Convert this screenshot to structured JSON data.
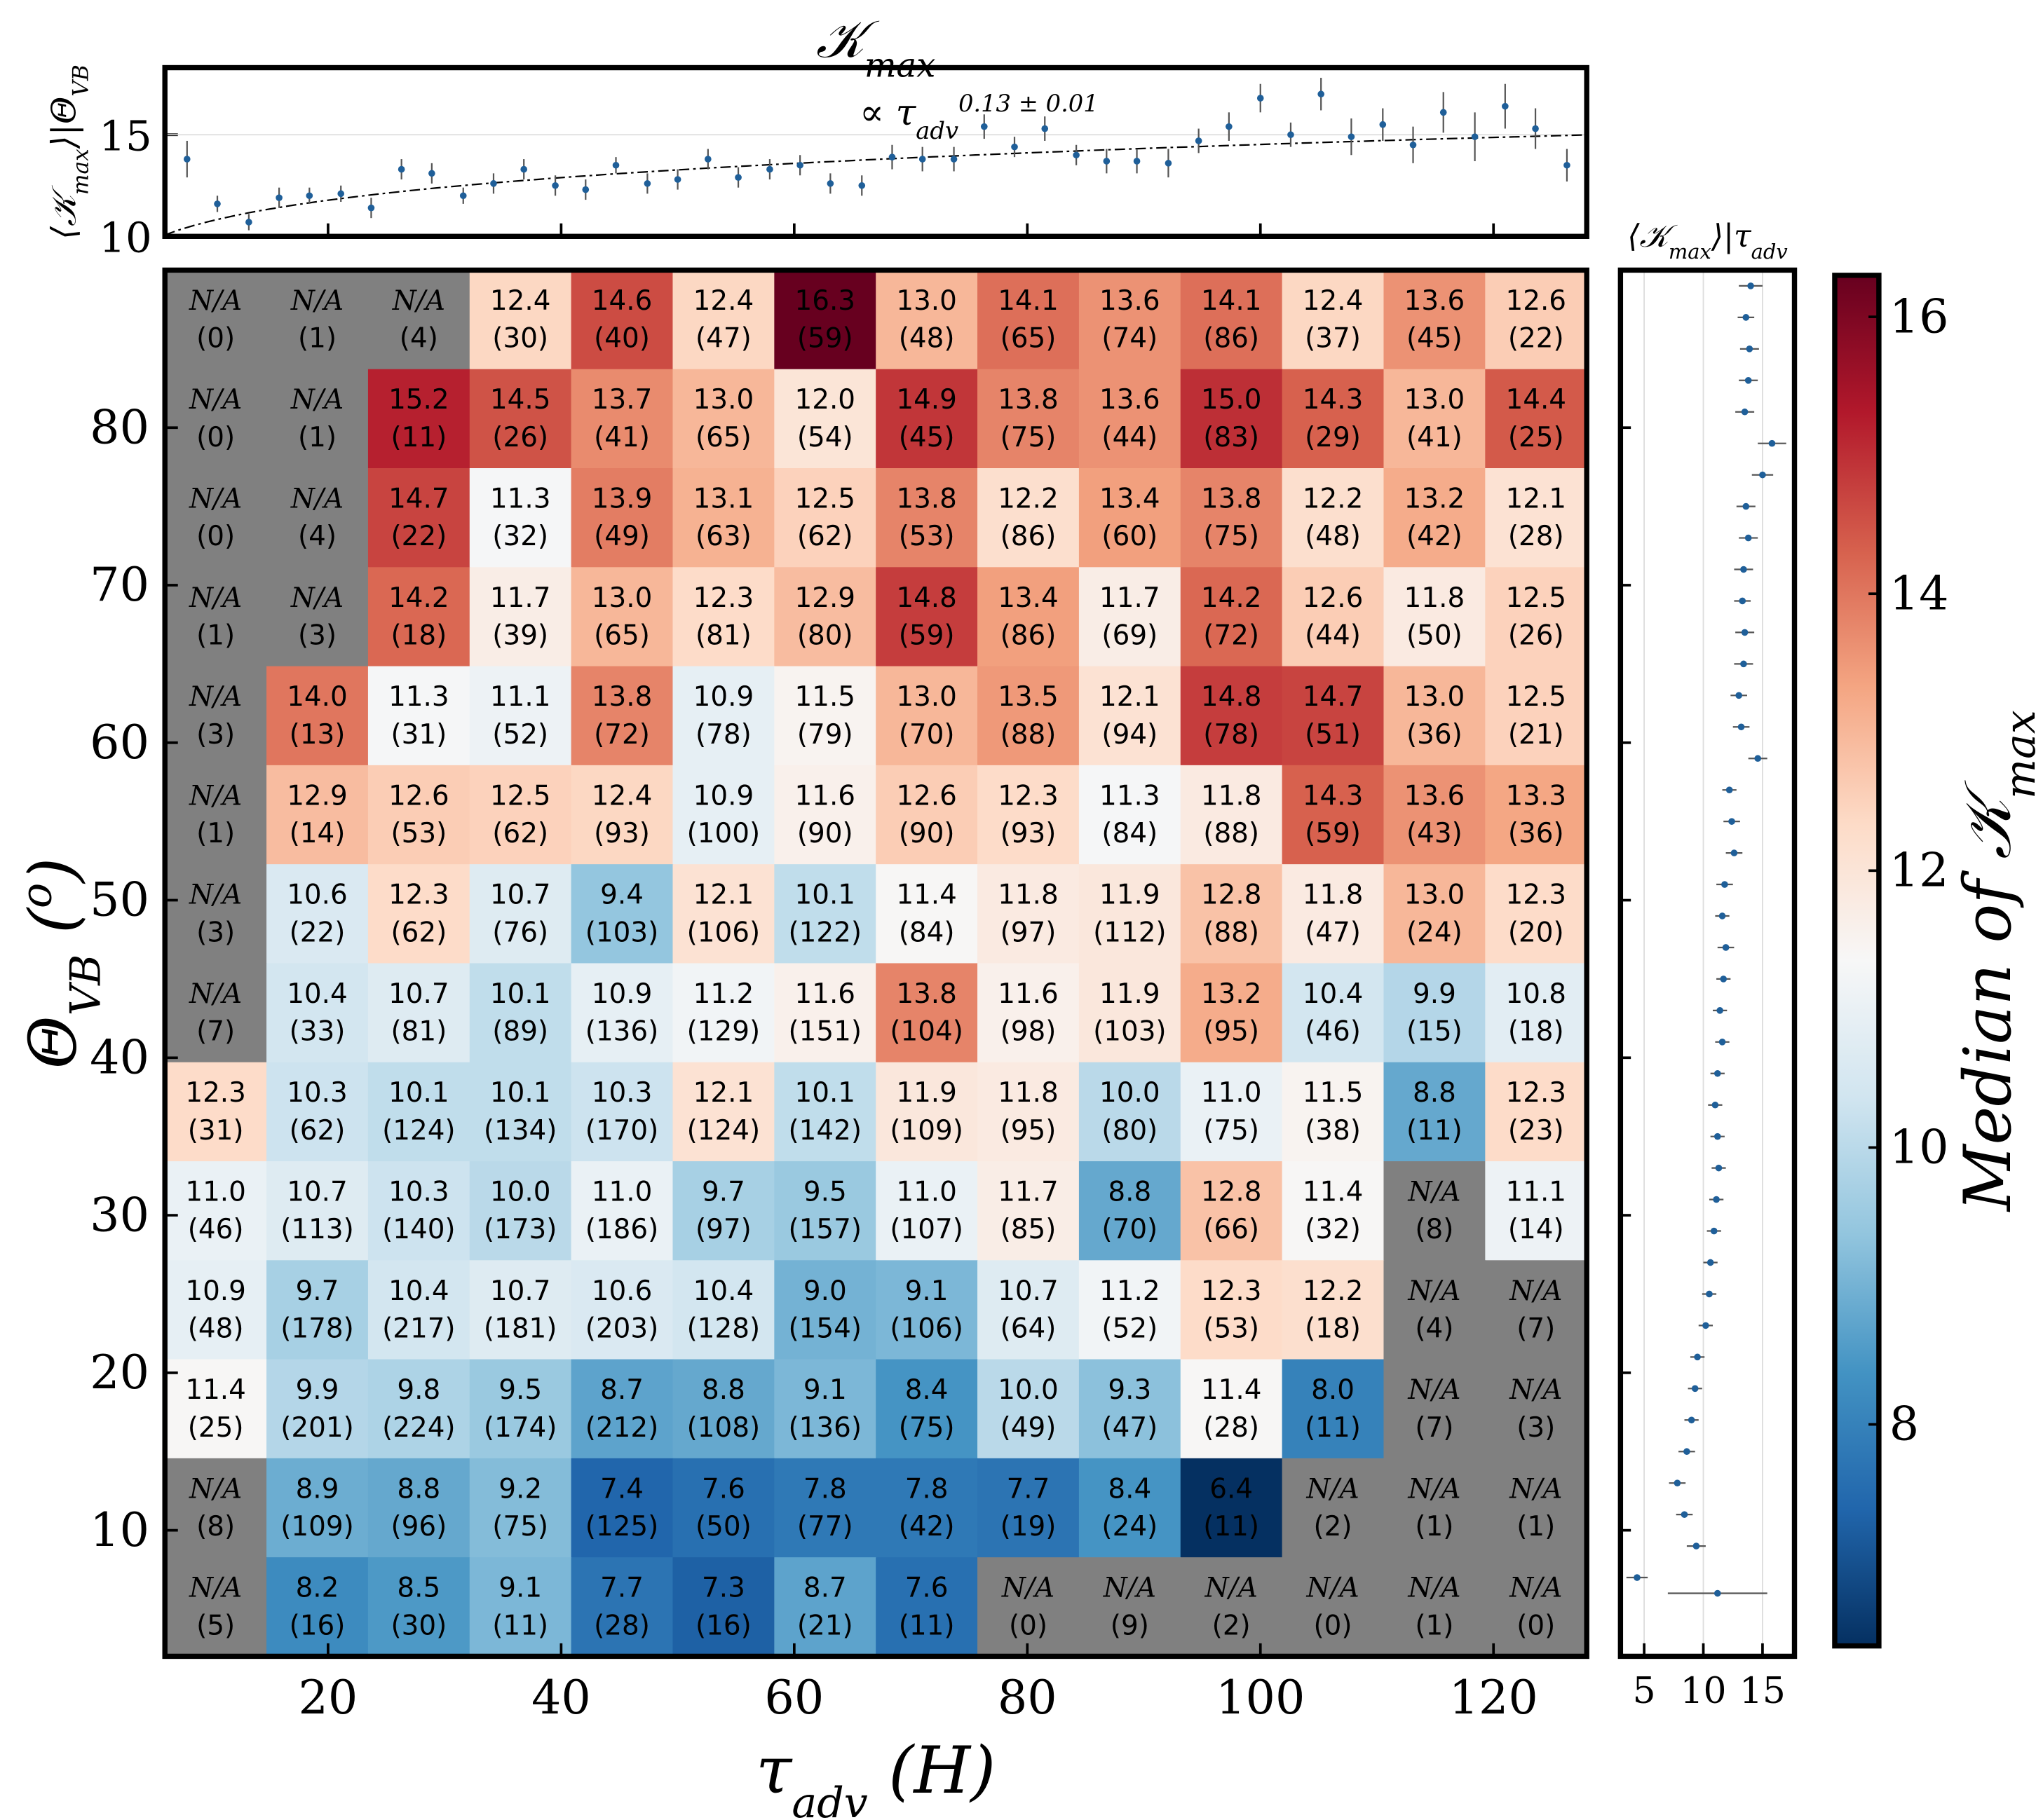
{
  "chart_data": {
    "type": "heatmap",
    "title": [
      {
        "t": "𝒦"
      },
      {
        "t": "max",
        "s": "sub"
      }
    ],
    "heatmap": {
      "xlim": [
        6,
        128
      ],
      "ylim": [
        2,
        90
      ],
      "xticks": [
        20,
        40,
        60,
        80,
        100,
        120
      ],
      "yticks": [
        10,
        20,
        30,
        40,
        50,
        60,
        70,
        80
      ],
      "xlabel": [
        {
          "t": "τ"
        },
        {
          "t": "adv",
          "s": "sub"
        },
        {
          "t": " (H)"
        }
      ],
      "ylabel": [
        {
          "t": "Θ"
        },
        {
          "t": "VB",
          "s": "sub"
        },
        {
          "t": " ("
        },
        {
          "t": "o",
          "s": "sup"
        },
        {
          "t": ")"
        }
      ],
      "na_label": "N/A",
      "na_color": "#808080",
      "clim": [
        6.4,
        16.3
      ],
      "colormap": [
        "#053061",
        "#2166ac",
        "#4393c3",
        "#92c5de",
        "#d1e5f0",
        "#f7f7f7",
        "#fddbc7",
        "#f4a582",
        "#d6604d",
        "#b2182b",
        "#67001f"
      ],
      "colorbar_ticks": [
        8,
        10,
        12,
        14,
        16
      ],
      "colorbar_label": [
        {
          "t": "Median of "
        },
        {
          "t": "𝒦"
        },
        {
          "t": "max",
          "s": "sub"
        }
      ],
      "values": [
        [
          null,
          null,
          null,
          12.4,
          14.6,
          12.4,
          16.3,
          13.0,
          14.1,
          13.6,
          14.1,
          12.4,
          13.6,
          12.6
        ],
        [
          null,
          null,
          15.2,
          14.5,
          13.7,
          13.0,
          12.0,
          14.9,
          13.8,
          13.6,
          15.0,
          14.3,
          13.0,
          14.4
        ],
        [
          null,
          null,
          14.7,
          11.3,
          13.9,
          13.1,
          12.5,
          13.8,
          12.2,
          13.4,
          13.8,
          12.2,
          13.2,
          12.1
        ],
        [
          null,
          null,
          14.2,
          11.7,
          13.0,
          12.3,
          12.9,
          14.8,
          13.4,
          11.7,
          14.2,
          12.6,
          11.8,
          12.5
        ],
        [
          null,
          14.0,
          11.3,
          11.1,
          13.8,
          10.9,
          11.5,
          13.0,
          13.5,
          12.1,
          14.8,
          14.7,
          13.0,
          12.5
        ],
        [
          null,
          12.9,
          12.6,
          12.5,
          12.4,
          10.9,
          11.6,
          12.6,
          12.3,
          11.3,
          11.8,
          14.3,
          13.6,
          13.3
        ],
        [
          null,
          10.6,
          12.3,
          10.7,
          9.4,
          12.1,
          10.1,
          11.4,
          11.8,
          11.9,
          12.8,
          11.8,
          13.0,
          12.3
        ],
        [
          null,
          10.4,
          10.7,
          10.1,
          10.9,
          11.2,
          11.6,
          13.8,
          11.6,
          11.9,
          13.2,
          10.4,
          9.9,
          10.8
        ],
        [
          12.3,
          10.3,
          10.1,
          10.1,
          10.3,
          12.1,
          10.1,
          11.9,
          11.8,
          10.0,
          11.0,
          11.5,
          8.8,
          12.3
        ],
        [
          11.0,
          10.7,
          10.3,
          10.0,
          11.0,
          9.7,
          9.5,
          11.0,
          11.7,
          8.8,
          12.8,
          11.4,
          null,
          11.1
        ],
        [
          10.9,
          9.7,
          10.4,
          10.7,
          10.6,
          10.4,
          9.0,
          9.1,
          10.7,
          11.2,
          12.3,
          12.2,
          null,
          null
        ],
        [
          11.4,
          9.9,
          9.8,
          9.5,
          8.7,
          8.8,
          9.1,
          8.4,
          10.0,
          9.3,
          11.4,
          8.0,
          null,
          null
        ],
        [
          null,
          8.9,
          8.8,
          9.2,
          7.4,
          7.6,
          7.8,
          7.8,
          7.7,
          8.4,
          6.4,
          null,
          null,
          null
        ],
        [
          null,
          8.2,
          8.5,
          9.1,
          7.7,
          7.3,
          8.7,
          7.6,
          null,
          null,
          null,
          null,
          null,
          null
        ]
      ],
      "value_labels": [
        [
          null,
          null,
          null,
          "12.4",
          "14.6",
          "12.4",
          "16.3",
          "13.0",
          "14.1",
          "13.6",
          "14.1",
          "12.4",
          "13.6",
          "12.6"
        ],
        [
          null,
          null,
          "15.2",
          "14.5",
          "13.7",
          "13.0",
          "12.0",
          "14.9",
          "13.8",
          "13.6",
          "15.0",
          "14.3",
          "13.0",
          "14.4"
        ],
        [
          null,
          null,
          "14.7",
          "11.3",
          "13.9",
          "13.1",
          "12.5",
          "13.8",
          "12.2",
          "13.4",
          "13.8",
          "12.2",
          "13.2",
          "12.1"
        ],
        [
          null,
          null,
          "14.2",
          "11.7",
          "13.0",
          "12.3",
          "12.9",
          "14.8",
          "13.4",
          "11.7",
          "14.2",
          "12.6",
          "11.8",
          "12.5"
        ],
        [
          null,
          "14.0",
          "11.3",
          "11.1",
          "13.8",
          "10.9",
          "11.5",
          "13.0",
          "13.5",
          "12.1",
          "14.8",
          "14.7",
          "13.0",
          "12.5"
        ],
        [
          null,
          "12.9",
          "12.6",
          "12.5",
          "12.4",
          "10.9",
          "11.6",
          "12.6",
          "12.3",
          "11.3",
          "11.8",
          "14.3",
          "13.6",
          "13.3"
        ],
        [
          null,
          "10.6",
          "12.3",
          "10.7",
          "9.4",
          "12.1",
          "10.1",
          "11.4",
          "11.8",
          "11.9",
          "12.8",
          "11.8",
          "13.0",
          "12.3"
        ],
        [
          null,
          "10.4",
          "10.7",
          "10.1",
          "10.9",
          "11.2",
          "11.6",
          "13.8",
          "11.6",
          "11.9",
          "13.2",
          "10.4",
          "9.9",
          "10.8"
        ],
        [
          "12.3",
          "10.3",
          "10.1",
          "10.1",
          "10.3",
          "12.1",
          "10.1",
          "11.9",
          "11.8",
          "10.0",
          "11.0",
          "11.5",
          "8.8",
          "12.3"
        ],
        [
          "11.0",
          "10.7",
          "10.3",
          "10.0",
          "11.0",
          "9.7",
          "9.5",
          "11.0",
          "11.7",
          "8.8",
          "12.8",
          "11.4",
          null,
          "11.1"
        ],
        [
          "10.9",
          "9.7",
          "10.4",
          "10.7",
          "10.6",
          "10.4",
          "9.0",
          "9.1",
          "10.7",
          "11.2",
          "12.3",
          "12.2",
          null,
          null
        ],
        [
          "11.4",
          "9.9",
          "9.8",
          "9.5",
          "8.7",
          "8.8",
          "9.1",
          "8.4",
          "10.0",
          "9.3",
          "11.4",
          "8.0",
          null,
          null
        ],
        [
          null,
          "8.9",
          "8.8",
          "9.2",
          "7.4",
          "7.6",
          "7.8",
          "7.8",
          "7.7",
          "8.4",
          "6.4",
          null,
          null,
          null
        ],
        [
          null,
          "8.2",
          "8.5",
          "9.1",
          "7.7",
          "7.3",
          "8.7",
          "7.6",
          null,
          null,
          null,
          null,
          null,
          null
        ]
      ],
      "count_labels": [
        [
          "(0)",
          "(1)",
          "(4)",
          "(30)",
          "(40)",
          "(47)",
          "(59)",
          "(48)",
          "(65)",
          "(74)",
          "(86)",
          "(37)",
          "(45)",
          "(22)"
        ],
        [
          "(0)",
          "(1)",
          "(11)",
          "(26)",
          "(41)",
          "(65)",
          "(54)",
          "(45)",
          "(75)",
          "(44)",
          "(83)",
          "(29)",
          "(41)",
          "(25)"
        ],
        [
          "(0)",
          "(4)",
          "(22)",
          "(32)",
          "(49)",
          "(63)",
          "(62)",
          "(53)",
          "(86)",
          "(60)",
          "(75)",
          "(48)",
          "(42)",
          "(28)"
        ],
        [
          "(1)",
          "(3)",
          "(18)",
          "(39)",
          "(65)",
          "(81)",
          "(80)",
          "(59)",
          "(86)",
          "(69)",
          "(72)",
          "(44)",
          "(50)",
          "(26)"
        ],
        [
          "(3)",
          "(13)",
          "(31)",
          "(52)",
          "(72)",
          "(78)",
          "(79)",
          "(70)",
          "(88)",
          "(94)",
          "(78)",
          "(51)",
          "(36)",
          "(21)"
        ],
        [
          "(1)",
          "(14)",
          "(53)",
          "(62)",
          "(93)",
          "(100)",
          "(90)",
          "(90)",
          "(93)",
          "(84)",
          "(88)",
          "(59)",
          "(43)",
          "(36)"
        ],
        [
          "(3)",
          "(22)",
          "(62)",
          "(76)",
          "(103)",
          "(106)",
          "(122)",
          "(84)",
          "(97)",
          "(112)",
          "(88)",
          "(47)",
          "(24)",
          "(20)"
        ],
        [
          "(7)",
          "(33)",
          "(81)",
          "(89)",
          "(136)",
          "(129)",
          "(151)",
          "(104)",
          "(98)",
          "(103)",
          "(95)",
          "(46)",
          "(15)",
          "(18)"
        ],
        [
          "(31)",
          "(62)",
          "(124)",
          "(134)",
          "(170)",
          "(124)",
          "(142)",
          "(109)",
          "(95)",
          "(80)",
          "(75)",
          "(38)",
          "(11)",
          "(23)"
        ],
        [
          "(46)",
          "(113)",
          "(140)",
          "(173)",
          "(186)",
          "(97)",
          "(157)",
          "(107)",
          "(85)",
          "(70)",
          "(66)",
          "(32)",
          "(8)",
          "(14)"
        ],
        [
          "(48)",
          "(178)",
          "(217)",
          "(181)",
          "(203)",
          "(128)",
          "(154)",
          "(106)",
          "(64)",
          "(52)",
          "(53)",
          "(18)",
          "(4)",
          "(7)"
        ],
        [
          "(25)",
          "(201)",
          "(224)",
          "(174)",
          "(212)",
          "(108)",
          "(136)",
          "(75)",
          "(49)",
          "(47)",
          "(28)",
          "(11)",
          "(7)",
          "(3)"
        ],
        [
          "(8)",
          "(109)",
          "(96)",
          "(75)",
          "(125)",
          "(50)",
          "(77)",
          "(42)",
          "(19)",
          "(24)",
          "(11)",
          "(2)",
          "(1)",
          "(1)"
        ],
        [
          "(5)",
          "(16)",
          "(30)",
          "(11)",
          "(28)",
          "(16)",
          "(21)",
          "(11)",
          "(0)",
          "(9)",
          "(2)",
          "(0)",
          "(1)",
          "(0)"
        ]
      ]
    },
    "top_panel": {
      "ylim": [
        10,
        18.3
      ],
      "yticks": [
        10,
        15
      ],
      "ylabel": [
        {
          "t": "⟨"
        },
        {
          "t": "𝒦"
        },
        {
          "t": "max",
          "s": "sub"
        },
        {
          "t": "⟩|"
        },
        {
          "t": "Θ"
        },
        {
          "t": "VB",
          "s": "sub"
        }
      ],
      "annotation": [
        {
          "t": "∝ τ"
        },
        {
          "t": "adv",
          "s": "sub"
        },
        {
          "t": "0.13 ± 0.01",
          "s": "sup"
        }
      ],
      "fit_exponent": 0.13,
      "fit_coefficient": 7.98,
      "color": "#1f5f99",
      "x": [
        7.9,
        10.5,
        13.2,
        15.8,
        18.4,
        21.1,
        23.7,
        26.3,
        28.9,
        31.6,
        34.2,
        36.8,
        39.5,
        42.1,
        44.7,
        47.4,
        50.0,
        52.6,
        55.2,
        57.9,
        60.5,
        63.1,
        65.8,
        68.4,
        71.0,
        73.7,
        76.3,
        78.9,
        81.5,
        84.2,
        86.8,
        89.4,
        92.1,
        94.7,
        97.3,
        100.0,
        102.6,
        105.2,
        107.8,
        110.5,
        113.1,
        115.7,
        118.4,
        121.0,
        123.6,
        126.3
      ],
      "y": [
        13.8,
        11.6,
        10.7,
        11.9,
        12.0,
        12.1,
        11.4,
        13.3,
        13.1,
        12.0,
        12.6,
        13.3,
        12.5,
        12.3,
        13.5,
        12.6,
        12.8,
        13.8,
        12.9,
        13.3,
        13.5,
        12.6,
        12.5,
        13.9,
        13.8,
        13.8,
        15.4,
        14.4,
        15.3,
        14.0,
        13.7,
        13.7,
        13.6,
        14.7,
        15.4,
        16.8,
        15.0,
        17.0,
        14.9,
        15.5,
        14.5,
        16.1,
        14.9,
        16.4,
        15.3,
        13.5
      ],
      "errors": [
        0.9,
        0.4,
        0.4,
        0.5,
        0.4,
        0.4,
        0.5,
        0.5,
        0.5,
        0.4,
        0.5,
        0.5,
        0.5,
        0.5,
        0.4,
        0.5,
        0.5,
        0.5,
        0.5,
        0.5,
        0.5,
        0.5,
        0.5,
        0.6,
        0.6,
        0.6,
        0.6,
        0.5,
        0.6,
        0.5,
        0.6,
        0.6,
        0.7,
        0.6,
        0.7,
        0.7,
        0.6,
        0.8,
        0.9,
        0.8,
        0.9,
        1.0,
        1.2,
        1.1,
        1.0,
        0.8
      ]
    },
    "right_panel": {
      "title": [
        {
          "t": "⟨"
        },
        {
          "t": "𝒦"
        },
        {
          "t": "max",
          "s": "sub"
        },
        {
          "t": "⟩|"
        },
        {
          "t": "τ"
        },
        {
          "t": "adv",
          "s": "sub"
        }
      ],
      "xlim": [
        3,
        17.7
      ],
      "xticks": [
        5,
        10,
        15
      ],
      "color": "#1f5f99",
      "theta": [
        89,
        87,
        85,
        83,
        81,
        79,
        77,
        75,
        73,
        71,
        69,
        67,
        65,
        63,
        61,
        59,
        57,
        55,
        53,
        51,
        49,
        47,
        45,
        43,
        41,
        39,
        37,
        35,
        33,
        31,
        29,
        27,
        25,
        23,
        21,
        19,
        17,
        15,
        13,
        11,
        9,
        7,
        6
      ],
      "values": [
        14.0,
        13.6,
        13.9,
        13.8,
        13.5,
        15.8,
        15.0,
        13.6,
        13.8,
        13.4,
        13.3,
        13.5,
        13.4,
        13.0,
        13.2,
        14.6,
        12.2,
        12.4,
        12.6,
        11.8,
        11.6,
        11.9,
        11.7,
        11.4,
        11.6,
        11.2,
        11.0,
        11.2,
        11.3,
        11.1,
        10.9,
        10.6,
        10.5,
        10.2,
        9.5,
        9.3,
        9.0,
        8.6,
        7.8,
        8.4,
        9.4,
        4.4,
        11.2
      ],
      "errors": [
        1.0,
        0.7,
        0.8,
        0.8,
        0.8,
        1.2,
        0.9,
        0.8,
        0.8,
        0.8,
        0.7,
        0.8,
        0.8,
        0.7,
        0.7,
        0.8,
        0.6,
        0.7,
        0.7,
        0.7,
        0.6,
        0.7,
        0.6,
        0.6,
        0.6,
        0.6,
        0.6,
        0.6,
        0.6,
        0.6,
        0.6,
        0.6,
        0.6,
        0.6,
        0.6,
        0.6,
        0.6,
        0.7,
        0.7,
        0.7,
        0.8,
        0.9,
        4.2
      ]
    }
  }
}
